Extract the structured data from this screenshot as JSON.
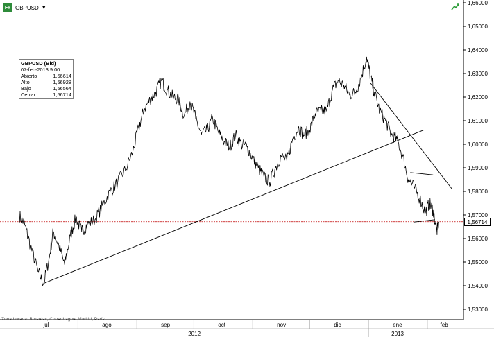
{
  "toolbar": {
    "symbol_label": "GBPUSD",
    "fx_badge": "Fx",
    "dropdown_caret": "▼",
    "trend_icon": "trend-up-arrow-icon",
    "trend_color": "#2e9e3a"
  },
  "info_box": {
    "title": "GBPUSD (Bid)",
    "datetime": "07-feb-2013 9:00",
    "rows": [
      {
        "label": "Abierto",
        "value": "1,56614"
      },
      {
        "label": "Alto",
        "value": "1,56928"
      },
      {
        "label": "Bajo",
        "value": "1,56564"
      },
      {
        "label": "Cerrar",
        "value": "1,56714"
      }
    ]
  },
  "timezone_note": "Zona horaria: Bruselas, Copenhague, Madrid, París",
  "last_price_label": "1,56714",
  "chart_data": {
    "type": "line",
    "title": "GBPUSD (Bid)",
    "xlabel": "",
    "ylabel": "",
    "ylim": [
      1.53,
      1.66
    ],
    "y_ticks": [
      "1,53000",
      "1,54000",
      "1,55000",
      "1,56000",
      "1,57000",
      "1,58000",
      "1,59000",
      "1,60000",
      "1,61000",
      "1,62000",
      "1,63000",
      "1,64000",
      "1,65000",
      "1,66000"
    ],
    "x_month_labels": [
      "jul",
      "ago",
      "sep",
      "oct",
      "nov",
      "dic",
      "ene",
      "feb"
    ],
    "x_year_labels": [
      "2012",
      "2013"
    ],
    "last_price": 1.56714,
    "grid": false,
    "colors": {
      "series": "#000000",
      "last_price_line": "#c00000",
      "axis": "#000000"
    },
    "series": [
      {
        "x": [
          "2012-07-01",
          "2012-07-04",
          "2012-07-07",
          "2012-07-11",
          "2012-07-14",
          "2012-07-17",
          "2012-07-19",
          "2012-07-22",
          "2012-07-25",
          "2012-07-28",
          "2012-07-31",
          "2012-08-03",
          "2012-08-06",
          "2012-08-10",
          "2012-08-14",
          "2012-08-18",
          "2012-08-22",
          "2012-08-26",
          "2012-08-30",
          "2012-09-02",
          "2012-09-05",
          "2012-09-08",
          "2012-09-11",
          "2012-09-14",
          "2012-09-17",
          "2012-09-20",
          "2012-09-23",
          "2012-09-26",
          "2012-09-29",
          "2012-10-02",
          "2012-10-05",
          "2012-10-08",
          "2012-10-11",
          "2012-10-14",
          "2012-10-17",
          "2012-10-20",
          "2012-10-23",
          "2012-10-26",
          "2012-10-29",
          "2012-11-01",
          "2012-11-04",
          "2012-11-07",
          "2012-11-10",
          "2012-11-13",
          "2012-11-16",
          "2012-11-19",
          "2012-11-22",
          "2012-11-25",
          "2012-11-28",
          "2012-12-01",
          "2012-12-04",
          "2012-12-07",
          "2012-12-10",
          "2012-12-13",
          "2012-12-16",
          "2012-12-19",
          "2012-12-22",
          "2012-12-25",
          "2012-12-28",
          "2012-12-31",
          "2013-01-02",
          "2013-01-04",
          "2013-01-07",
          "2013-01-10",
          "2013-01-13",
          "2013-01-16",
          "2013-01-19",
          "2013-01-22",
          "2013-01-25",
          "2013-01-28",
          "2013-01-31",
          "2013-02-02",
          "2013-02-04",
          "2013-02-06",
          "2013-02-07"
        ],
        "values": [
          1.57,
          1.566,
          1.557,
          1.546,
          1.541,
          1.552,
          1.563,
          1.557,
          1.549,
          1.561,
          1.569,
          1.563,
          1.566,
          1.568,
          1.574,
          1.58,
          1.584,
          1.589,
          1.597,
          1.607,
          1.615,
          1.619,
          1.622,
          1.627,
          1.623,
          1.62,
          1.619,
          1.612,
          1.618,
          1.611,
          1.604,
          1.606,
          1.611,
          1.605,
          1.601,
          1.599,
          1.604,
          1.6,
          1.599,
          1.594,
          1.59,
          1.586,
          1.584,
          1.59,
          1.595,
          1.593,
          1.602,
          1.607,
          1.604,
          1.606,
          1.613,
          1.614,
          1.614,
          1.623,
          1.627,
          1.625,
          1.621,
          1.622,
          1.628,
          1.637,
          1.629,
          1.622,
          1.614,
          1.61,
          1.604,
          1.602,
          1.595,
          1.585,
          1.582,
          1.577,
          1.571,
          1.575,
          1.572,
          1.563,
          1.567
        ]
      }
    ],
    "trendlines": [
      {
        "x": [
          "2012-07-14",
          "2013-01-30"
        ],
        "values": [
          1.541,
          1.606
        ]
      },
      {
        "x": [
          "2013-01-02",
          "2013-02-14"
        ],
        "values": [
          1.626,
          1.581
        ]
      },
      {
        "x": [
          "2013-01-23",
          "2013-02-04"
        ],
        "values": [
          1.588,
          1.587
        ]
      },
      {
        "x": [
          "2013-01-25",
          "2013-02-05"
        ],
        "values": [
          1.567,
          1.568
        ]
      }
    ]
  }
}
